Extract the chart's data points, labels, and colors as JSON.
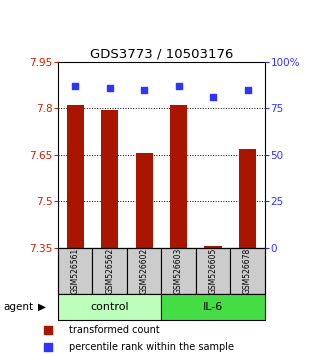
{
  "title": "GDS3773 / 10503176",
  "samples": [
    "GSM526561",
    "GSM526562",
    "GSM526602",
    "GSM526603",
    "GSM526605",
    "GSM526678"
  ],
  "bar_values": [
    7.81,
    7.795,
    7.655,
    7.81,
    7.355,
    7.67
  ],
  "percentile_values": [
    87,
    86,
    85,
    87,
    81,
    85
  ],
  "ylim_left": [
    7.35,
    7.95
  ],
  "ylim_right": [
    0,
    100
  ],
  "yticks_left": [
    7.35,
    7.5,
    7.65,
    7.8,
    7.95
  ],
  "yticks_right": [
    0,
    25,
    50,
    75,
    100
  ],
  "ytick_labels_right": [
    "0",
    "25",
    "50",
    "75",
    "100%"
  ],
  "bar_color": "#aa1500",
  "percentile_color": "#3333ff",
  "bar_width": 0.5,
  "left_axis_color": "#cc2200",
  "right_axis_color": "#3333ff",
  "legend_bar_label": "transformed count",
  "legend_pct_label": "percentile rank within the sample",
  "control_color": "#bbffbb",
  "il6_color": "#44dd44",
  "sample_box_color": "#cccccc",
  "figsize": [
    3.31,
    3.54
  ],
  "dpi": 100
}
